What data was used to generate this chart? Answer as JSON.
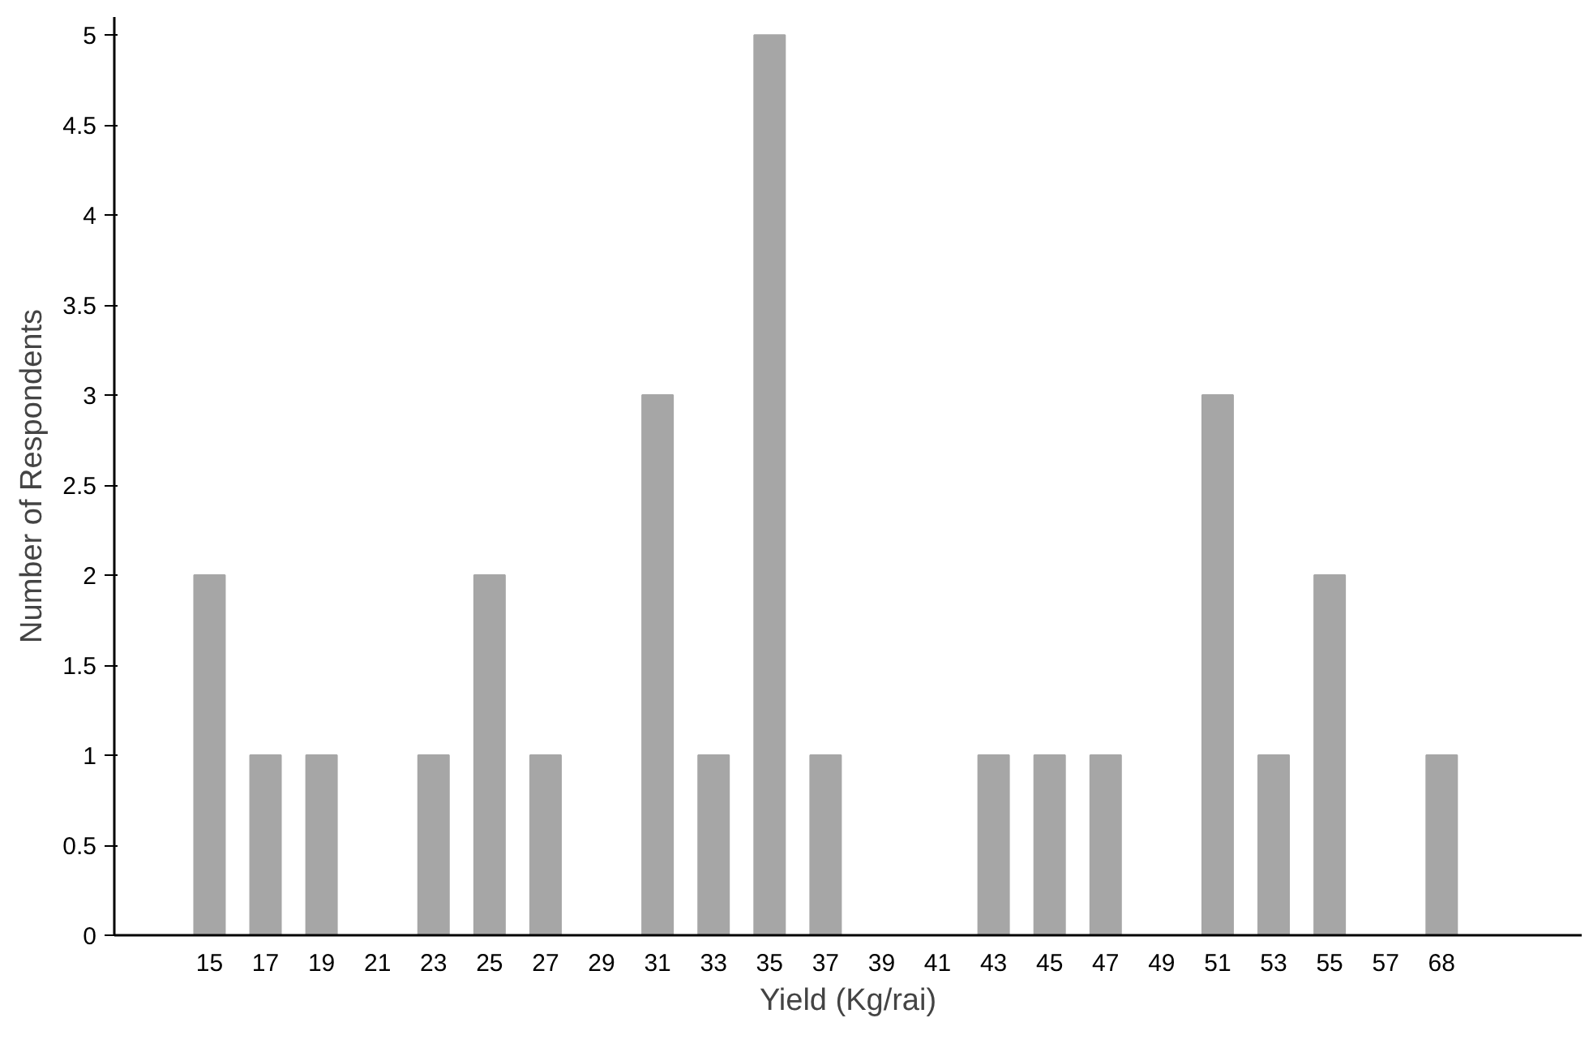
{
  "chart_data": {
    "type": "bar",
    "xlabel": "Yield (Kg/rai)",
    "ylabel": "Number of Respondents",
    "categories": [
      "15",
      "17",
      "19",
      "21",
      "23",
      "25",
      "27",
      "29",
      "31",
      "33",
      "35",
      "37",
      "39",
      "41",
      "43",
      "45",
      "47",
      "49",
      "51",
      "53",
      "55",
      "57",
      "68"
    ],
    "values": [
      2,
      1,
      1,
      0,
      1,
      2,
      1,
      0,
      3,
      1,
      5,
      1,
      0,
      0,
      1,
      1,
      1,
      0,
      3,
      1,
      2,
      0,
      1
    ],
    "color": "#a6a6a6",
    "ylim": [
      0,
      5.1
    ],
    "yticks": [
      0,
      0.5,
      1,
      1.5,
      2,
      2.5,
      3,
      3.5,
      4,
      4.5,
      5
    ],
    "grid": false
  }
}
